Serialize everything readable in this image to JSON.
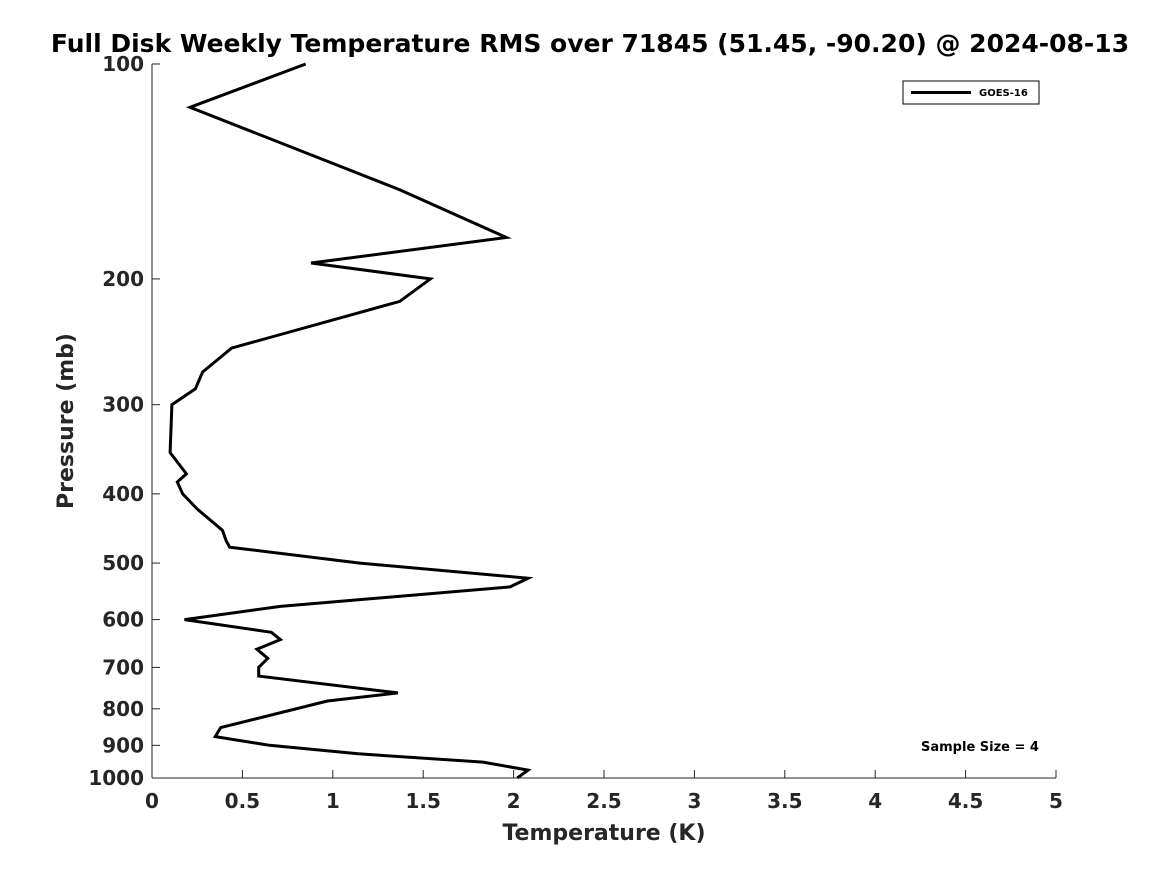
{
  "chart_data": {
    "type": "line",
    "title": "Full Disk Weekly Temperature RMS over 71845 (51.45, -90.20) @ 2024-08-13",
    "xlabel": "Temperature (K)",
    "ylabel": "Pressure (mb)",
    "xlim": [
      0,
      5
    ],
    "ylim": [
      100,
      1000
    ],
    "y_scale": "log",
    "y_reversed": true,
    "x_ticks": [
      0,
      0.5,
      1,
      1.5,
      2,
      2.5,
      3,
      3.5,
      4,
      4.5,
      5
    ],
    "x_tick_labels": [
      "0",
      "0.5",
      "1",
      "1.5",
      "2",
      "2.5",
      "3",
      "3.5",
      "4",
      "4.5",
      "5"
    ],
    "y_ticks": [
      100,
      200,
      300,
      400,
      500,
      600,
      700,
      800,
      900,
      1000
    ],
    "y_tick_labels": [
      "100",
      "200",
      "300",
      "400",
      "500",
      "600",
      "700",
      "800",
      "900",
      "1000"
    ],
    "grid": false,
    "legend_position": "top-right",
    "series": [
      {
        "name": "GOES-16",
        "color": "#000000",
        "points": [
          [
            0.85,
            100
          ],
          [
            0.21,
            115
          ],
          [
            1.37,
            150
          ],
          [
            1.96,
            175
          ],
          [
            0.88,
            190
          ],
          [
            1.54,
            200
          ],
          [
            1.37,
            215
          ],
          [
            0.44,
            250
          ],
          [
            0.28,
            270
          ],
          [
            0.24,
            285
          ],
          [
            0.11,
            300
          ],
          [
            0.1,
            350
          ],
          [
            0.19,
            375
          ],
          [
            0.14,
            385
          ],
          [
            0.17,
            400
          ],
          [
            0.25,
            420
          ],
          [
            0.39,
            450
          ],
          [
            0.41,
            465
          ],
          [
            0.43,
            475
          ],
          [
            1.15,
            500
          ],
          [
            2.08,
            525
          ],
          [
            1.98,
            540
          ],
          [
            0.71,
            575
          ],
          [
            0.18,
            600
          ],
          [
            0.66,
            625
          ],
          [
            0.71,
            640
          ],
          [
            0.58,
            660
          ],
          [
            0.64,
            680
          ],
          [
            0.59,
            700
          ],
          [
            0.59,
            720
          ],
          [
            1.36,
            760
          ],
          [
            0.97,
            780
          ],
          [
            0.38,
            850
          ],
          [
            0.35,
            875
          ],
          [
            0.65,
            900
          ],
          [
            1.14,
            925
          ],
          [
            1.83,
            950
          ],
          [
            2.08,
            975
          ],
          [
            2.02,
            1000
          ]
        ]
      }
    ],
    "annotations": [
      "Sample Size = 4"
    ]
  }
}
